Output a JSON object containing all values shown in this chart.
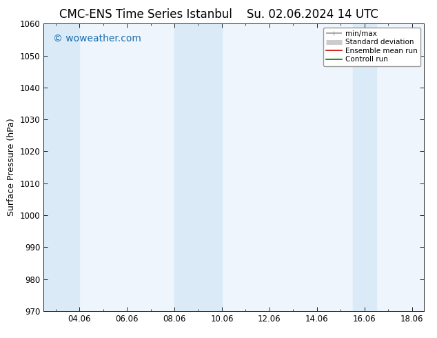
{
  "title": "CMC-ENS Time Series Istanbul",
  "title2": "Su. 02.06.2024 14 UTC",
  "ylabel": "Surface Pressure (hPa)",
  "ylim": [
    970,
    1060
  ],
  "yticks": [
    970,
    980,
    990,
    1000,
    1010,
    1020,
    1030,
    1040,
    1050,
    1060
  ],
  "xlim": [
    2.5,
    18.5
  ],
  "xtick_labels": [
    "04.06",
    "06.06",
    "08.06",
    "10.06",
    "12.06",
    "14.06",
    "16.06",
    "18.06"
  ],
  "xtick_positions": [
    4,
    6,
    8,
    10,
    12,
    14,
    16,
    18
  ],
  "watermark": "© woweather.com",
  "watermark_color": "#1a6faf",
  "shaded_bands": [
    {
      "xmin": 2.5,
      "xmax": 4.0
    },
    {
      "xmin": 8.0,
      "xmax": 10.0
    },
    {
      "xmin": 15.5,
      "xmax": 16.5
    }
  ],
  "band_color": "#daeaf7",
  "plot_bg_color": "#eef5fc",
  "legend_items": [
    {
      "label": "min/max",
      "color": "#999999",
      "lw": 1.2
    },
    {
      "label": "Standard deviation",
      "color": "#cccccc",
      "lw": 5
    },
    {
      "label": "Ensemble mean run",
      "color": "#cc0000",
      "lw": 1.2
    },
    {
      "label": "Controll run",
      "color": "#007700",
      "lw": 1.2
    }
  ],
  "bg_color": "#ffffff",
  "title_fontsize": 12,
  "tick_fontsize": 8.5,
  "ylabel_fontsize": 9,
  "watermark_fontsize": 10
}
